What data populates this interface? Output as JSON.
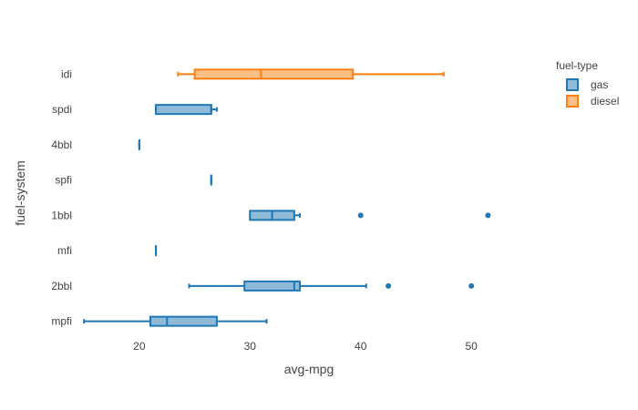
{
  "chart_data": {
    "type": "box",
    "orientation": "horizontal",
    "xlabel": "avg-mpg",
    "ylabel": "fuel-system",
    "xlim": [
      14,
      56
    ],
    "x_ticks": [
      20,
      30,
      40,
      50
    ],
    "categories": [
      "mpfi",
      "2bbl",
      "mfi",
      "1bbl",
      "spfi",
      "4bbl",
      "spdi",
      "idi"
    ],
    "grid": false,
    "legend": {
      "title": "fuel-type",
      "position": "top-right",
      "entries": [
        "gas",
        "diesel"
      ]
    },
    "series": [
      {
        "name": "gas",
        "color": "#1f77b4",
        "fill": "#8fbbd9",
        "boxes": [
          {
            "category": "mpfi",
            "whisker_low": 15,
            "q1": 21,
            "median": 22.5,
            "q3": 27,
            "whisker_high": 31.5,
            "outliers": []
          },
          {
            "category": "2bbl",
            "whisker_low": 24.5,
            "q1": 29.5,
            "median": 34,
            "q3": 34.5,
            "whisker_high": 40.5,
            "outliers": [
              42.5,
              50
            ]
          },
          {
            "category": "mfi",
            "whisker_low": 21.5,
            "q1": 21.5,
            "median": 21.5,
            "q3": 21.5,
            "whisker_high": 21.5,
            "outliers": []
          },
          {
            "category": "1bbl",
            "whisker_low": 30,
            "q1": 30,
            "median": 32,
            "q3": 34,
            "whisker_high": 34.5,
            "outliers": [
              40,
              51.5
            ]
          },
          {
            "category": "spfi",
            "whisker_low": 26.5,
            "q1": 26.5,
            "median": 26.5,
            "q3": 26.5,
            "whisker_high": 26.5,
            "outliers": []
          },
          {
            "category": "4bbl",
            "whisker_low": 20,
            "q1": 20,
            "median": 20,
            "q3": 20,
            "whisker_high": 20,
            "outliers": []
          },
          {
            "category": "spdi",
            "whisker_low": 21.5,
            "q1": 21.5,
            "median": 26.5,
            "q3": 26.5,
            "whisker_high": 27,
            "outliers": []
          }
        ]
      },
      {
        "name": "diesel",
        "color": "#ff7f0e",
        "fill": "#ffbf87",
        "boxes": [
          {
            "category": "idi",
            "whisker_low": 23.5,
            "q1": 25,
            "median": 31,
            "q3": 39.3,
            "whisker_high": 47.5,
            "outliers": []
          }
        ]
      }
    ]
  }
}
